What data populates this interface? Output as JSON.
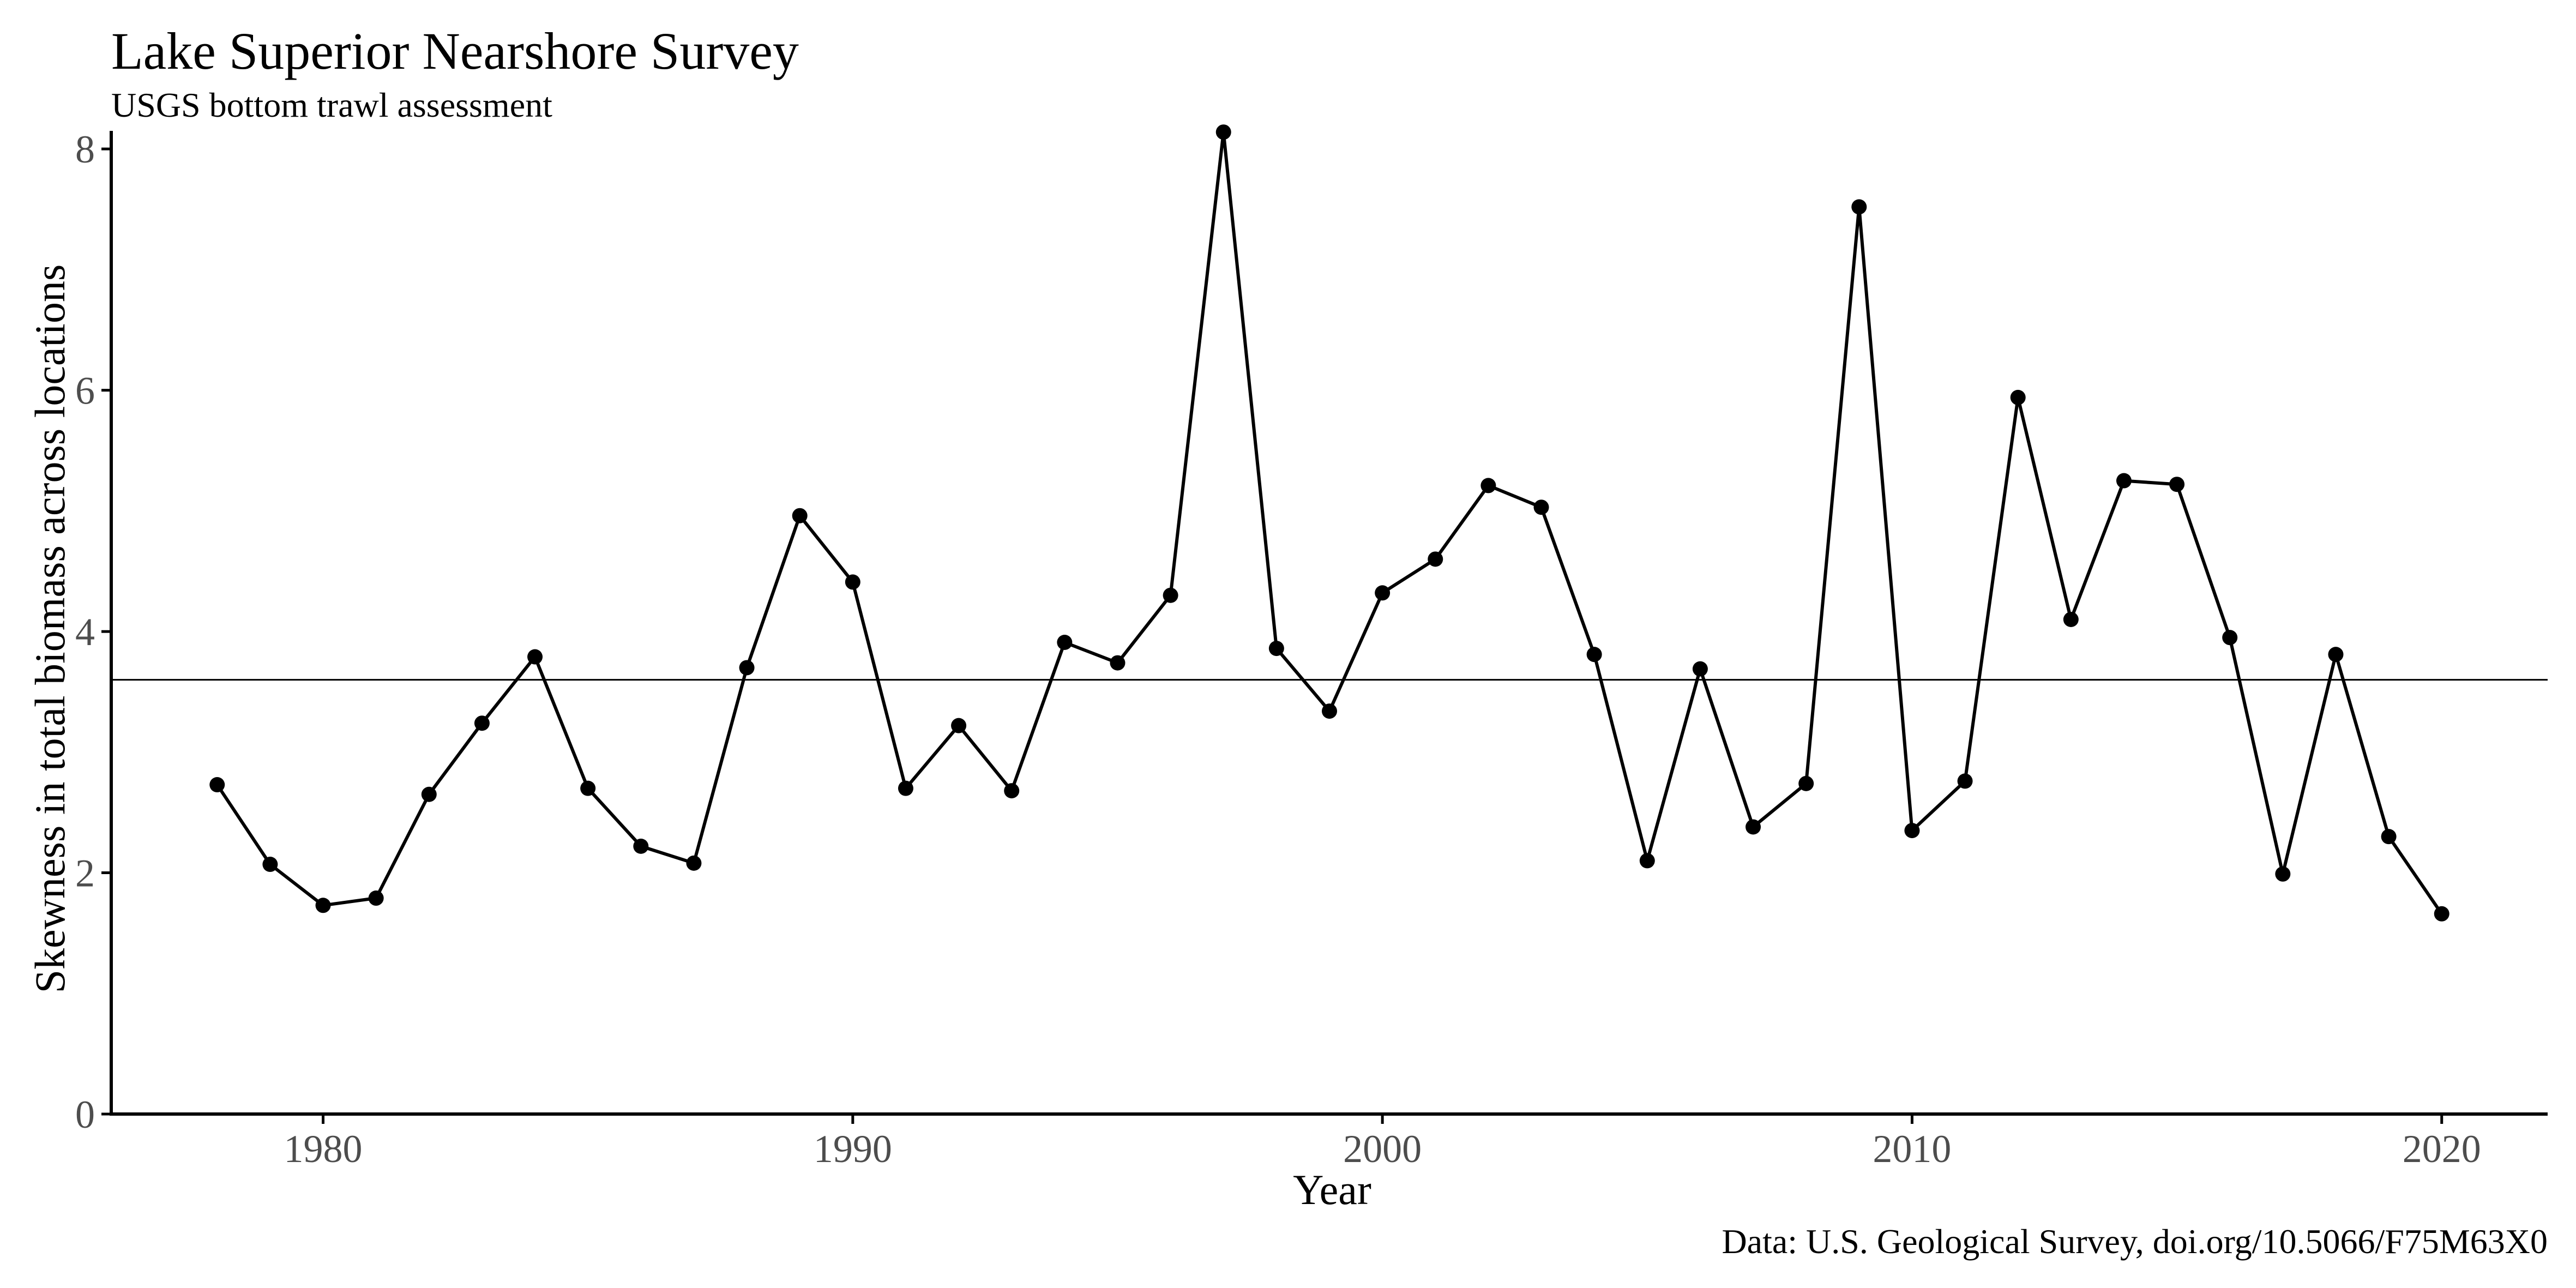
{
  "chart_data": {
    "type": "line",
    "title": "Lake Superior Nearshore Survey",
    "subtitle": "USGS bottom trawl assessment",
    "caption": "Data: U.S. Geological Survey, doi.org/10.5066/F75M63X0",
    "xlabel": "Year",
    "ylabel": "Skewness in total biomass across locations",
    "xlim": [
      1976,
      2022
    ],
    "ylim": [
      0,
      8.15
    ],
    "x_ticks": [
      1980,
      1990,
      2000,
      2010,
      2020
    ],
    "x_tick_labels": [
      "1980",
      "1990",
      "2000",
      "2010",
      "2020"
    ],
    "y_ticks": [
      0,
      2,
      4,
      6,
      8
    ],
    "y_tick_labels": [
      "0",
      "2",
      "4",
      "6",
      "8"
    ],
    "reference_line": {
      "y": 3.6
    },
    "grid": false,
    "legend": "none",
    "series": [
      {
        "x": [
          1978,
          1979,
          1980,
          1981,
          1982,
          1983,
          1984,
          1985,
          1986,
          1987,
          1988,
          1989,
          1990,
          1991,
          1992,
          1993,
          1994,
          1995,
          1996,
          1997,
          1998,
          1999,
          2000,
          2001,
          2002,
          2003,
          2004,
          2005,
          2006,
          2007,
          2008,
          2009,
          2010,
          2011,
          2012,
          2013,
          2014,
          2015,
          2016,
          2017,
          2018,
          2019,
          2020
        ],
        "values": [
          2.73,
          2.07,
          1.73,
          1.79,
          2.65,
          3.24,
          3.79,
          2.7,
          2.22,
          2.08,
          3.7,
          4.96,
          4.41,
          2.7,
          3.22,
          2.68,
          3.91,
          3.74,
          4.3,
          8.14,
          3.86,
          3.34,
          4.32,
          4.6,
          5.21,
          5.03,
          3.81,
          2.1,
          3.69,
          2.38,
          2.74,
          7.52,
          2.35,
          2.76,
          5.94,
          4.1,
          5.25,
          5.22,
          3.95,
          1.99,
          3.81,
          2.3,
          1.66
        ]
      }
    ],
    "colors": {
      "line": "#000000",
      "points": "#000000",
      "axis": "#000000",
      "tick_label": "#4d4d4d"
    }
  }
}
